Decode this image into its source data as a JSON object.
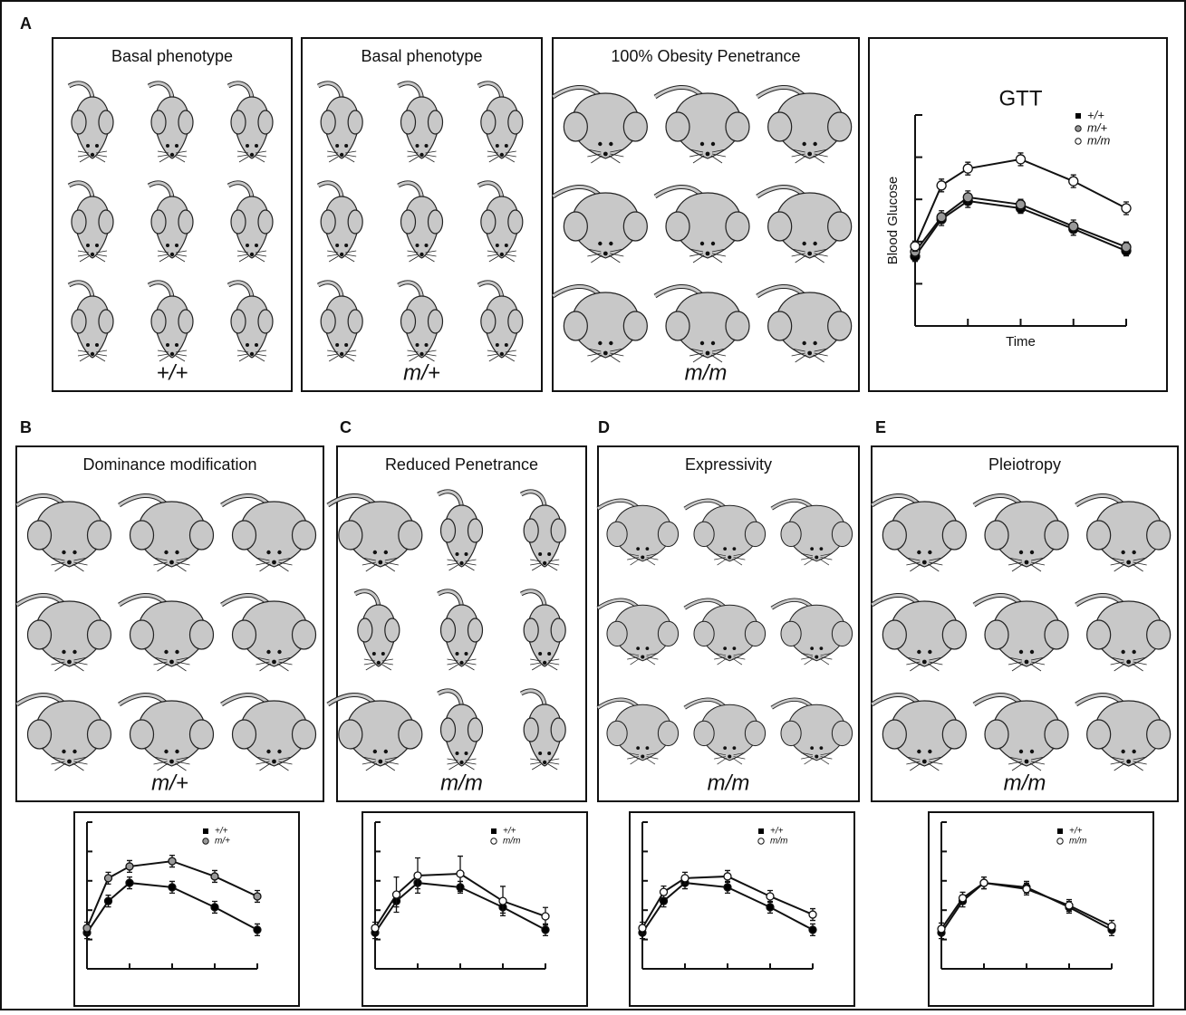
{
  "letters": [
    "A",
    "B",
    "C",
    "D",
    "E"
  ],
  "boxes": [
    {
      "title": "Basal phenotype",
      "genotype": "+/+"
    },
    {
      "title": "Basal phenotype",
      "genotype": "m/+"
    },
    {
      "title": "100% Obesity Penetrance",
      "genotype": "m/m"
    },
    {
      "title": "Dominance modification",
      "genotype": "m/+"
    },
    {
      "title": "Reduced Penetrance",
      "genotype": "m/m"
    },
    {
      "title": "Expressivity",
      "genotype": "m/m"
    },
    {
      "title": "Pleiotropy",
      "genotype": "m/m"
    }
  ],
  "chart_data": [
    {
      "type": "line",
      "title": "GTT",
      "xlabel": "Time",
      "ylabel": "Blood Glucose",
      "x": [
        0,
        15,
        30,
        60,
        90,
        120
      ],
      "xlim": [
        0,
        120
      ],
      "xticks": [
        0,
        30,
        60,
        90,
        120
      ],
      "ylim": [
        0,
        5
      ],
      "yticks": [
        0,
        1,
        2,
        3,
        4,
        5
      ],
      "series": [
        {
          "name": "+/+",
          "color": "#000000",
          "values": [
            1.65,
            2.53,
            2.96,
            2.79,
            2.3,
            1.78
          ],
          "errors": [
            0.12,
            0.15,
            0.15,
            0.12,
            0.15,
            0.12
          ]
        },
        {
          "name": "m/+",
          "color": "#999999",
          "values": [
            1.76,
            2.58,
            3.05,
            2.88,
            2.36,
            1.87
          ],
          "errors": [
            0.12,
            0.15,
            0.15,
            0.12,
            0.15,
            0.12
          ]
        },
        {
          "name": "m/m",
          "color": "#ffffff",
          "values": [
            1.89,
            3.33,
            3.73,
            3.95,
            3.43,
            2.79
          ],
          "errors": [
            0.12,
            0.15,
            0.15,
            0.15,
            0.15,
            0.15
          ]
        }
      ]
    },
    {
      "type": "line",
      "x": [
        0,
        15,
        30,
        60,
        90,
        120
      ],
      "xlim": [
        0,
        120
      ],
      "xticks": [
        0,
        30,
        60,
        90,
        120
      ],
      "ylim": [
        0,
        5
      ],
      "yticks": [
        0,
        1,
        2,
        3,
        4,
        5
      ],
      "series": [
        {
          "name": "+/+",
          "color": "#000000",
          "values": [
            1.23,
            2.31,
            2.93,
            2.78,
            2.1,
            1.33
          ],
          "errors": [
            0.2,
            0.2,
            0.2,
            0.2,
            0.2,
            0.2
          ]
        },
        {
          "name": "m/+",
          "color": "#999999",
          "values": [
            1.39,
            3.09,
            3.49,
            3.67,
            3.15,
            2.47
          ],
          "errors": [
            0.2,
            0.2,
            0.2,
            0.2,
            0.2,
            0.2
          ]
        }
      ]
    },
    {
      "type": "line",
      "x": [
        0,
        15,
        30,
        60,
        90,
        120
      ],
      "xlim": [
        0,
        120
      ],
      "xticks": [
        0,
        30,
        60,
        90,
        120
      ],
      "ylim": [
        0,
        5
      ],
      "yticks": [
        0,
        1,
        2,
        3,
        4,
        5
      ],
      "series": [
        {
          "name": "+/+",
          "color": "#000000",
          "values": [
            1.23,
            2.31,
            2.93,
            2.78,
            2.1,
            1.33
          ],
          "errors": [
            0.2,
            0.2,
            0.2,
            0.2,
            0.2,
            0.2
          ]
        },
        {
          "name": "m/m",
          "color": "#ffffff",
          "values": [
            1.39,
            2.53,
            3.18,
            3.24,
            2.31,
            1.79
          ],
          "errors": [
            0.2,
            0.6,
            0.6,
            0.6,
            0.5,
            0.3
          ]
        }
      ]
    },
    {
      "type": "line",
      "x": [
        0,
        15,
        30,
        60,
        90,
        120
      ],
      "xlim": [
        0,
        120
      ],
      "xticks": [
        0,
        30,
        60,
        90,
        120
      ],
      "ylim": [
        0,
        5
      ],
      "yticks": [
        0,
        1,
        2,
        3,
        4,
        5
      ],
      "series": [
        {
          "name": "+/+",
          "color": "#000000",
          "values": [
            1.23,
            2.31,
            2.93,
            2.78,
            2.1,
            1.33
          ],
          "errors": [
            0.2,
            0.2,
            0.2,
            0.2,
            0.2,
            0.2
          ]
        },
        {
          "name": "m/m",
          "color": "#ffffff",
          "values": [
            1.39,
            2.62,
            3.09,
            3.15,
            2.47,
            1.85
          ],
          "errors": [
            0.2,
            0.2,
            0.2,
            0.2,
            0.2,
            0.2
          ]
        }
      ]
    },
    {
      "type": "line",
      "x": [
        0,
        15,
        30,
        60,
        90,
        120
      ],
      "xlim": [
        0,
        120
      ],
      "xticks": [
        0,
        30,
        60,
        90,
        120
      ],
      "ylim": [
        0,
        5
      ],
      "yticks": [
        0,
        1,
        2,
        3,
        4,
        5
      ],
      "series": [
        {
          "name": "+/+",
          "color": "#000000",
          "values": [
            1.23,
            2.31,
            2.93,
            2.78,
            2.1,
            1.33
          ],
          "errors": [
            0.2,
            0.2,
            0.2,
            0.2,
            0.2,
            0.2
          ]
        },
        {
          "name": "m/m",
          "color": "#ffffff",
          "values": [
            1.36,
            2.41,
            2.93,
            2.72,
            2.16,
            1.45
          ],
          "errors": [
            0.2,
            0.2,
            0.2,
            0.2,
            0.2,
            0.2
          ]
        }
      ]
    }
  ]
}
